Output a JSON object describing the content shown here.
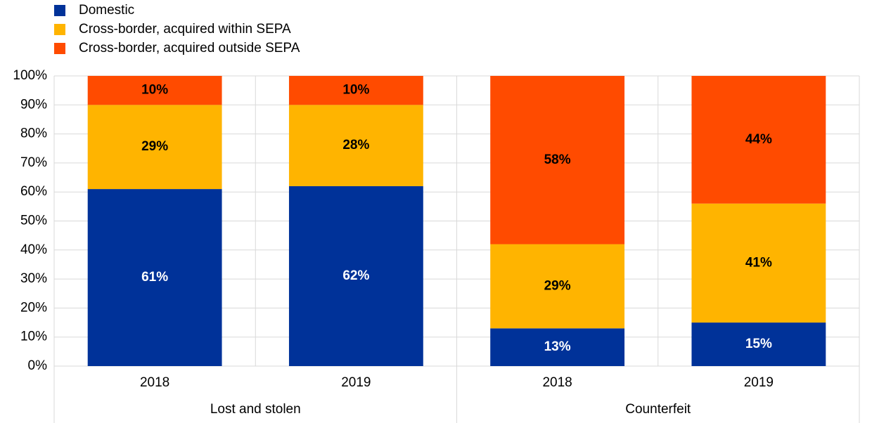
{
  "chart_data": {
    "type": "stacked_bar",
    "categories": [
      "2018",
      "2019",
      "2018",
      "2019"
    ],
    "groups": [
      "Lost and stolen",
      "Counterfeit"
    ],
    "series": [
      {
        "name": "Domestic",
        "color": "#003299",
        "values": [
          61,
          62,
          13,
          15
        ],
        "value_labels": [
          "61%",
          "62%",
          "13%",
          "15%"
        ]
      },
      {
        "name": "Cross-border, acquired within SEPA",
        "color": "#ffb400",
        "values": [
          29,
          28,
          29,
          41
        ],
        "value_labels": [
          "29%",
          "28%",
          "29%",
          "41%"
        ]
      },
      {
        "name": "Cross-border, acquired outside SEPA",
        "color": "#ff4b00",
        "values": [
          10,
          10,
          58,
          44
        ],
        "value_labels": [
          "10%",
          "10%",
          "58%",
          "44%"
        ]
      }
    ],
    "ylim": [
      0,
      100
    ],
    "yticks": [
      {
        "value": 0,
        "label": "0%"
      },
      {
        "value": 10,
        "label": "10%"
      },
      {
        "value": 20,
        "label": "20%"
      },
      {
        "value": 30,
        "label": "30%"
      },
      {
        "value": 40,
        "label": "40%"
      },
      {
        "value": 50,
        "label": "50%"
      },
      {
        "value": 60,
        "label": "60%"
      },
      {
        "value": 70,
        "label": "70%"
      },
      {
        "value": 80,
        "label": "80%"
      },
      {
        "value": 90,
        "label": "90%"
      },
      {
        "value": 100,
        "label": "100%"
      }
    ],
    "grid": true,
    "legend": "top-left"
  }
}
